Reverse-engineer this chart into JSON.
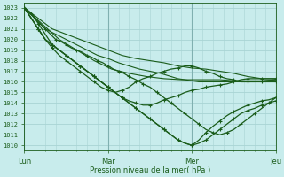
{
  "title": "",
  "xlabel": "Pression niveau de la mer( hPa )",
  "ylabel": "",
  "bg_color": "#c8ecec",
  "grid_color": "#a8d4d4",
  "line_color": "#1a5c1a",
  "ylim": [
    1010,
    1023
  ],
  "yticks": [
    1010,
    1011,
    1012,
    1013,
    1014,
    1015,
    1016,
    1017,
    1018,
    1019,
    1020,
    1021,
    1022,
    1023
  ],
  "xtick_labels": [
    "Lun",
    "Mar",
    "Mer",
    "Jeu"
  ],
  "xtick_positions": [
    0,
    48,
    96,
    144
  ],
  "total_hours": 144,
  "series": [
    {
      "dots": true,
      "pts": [
        [
          0,
          1023
        ],
        [
          4,
          1022
        ],
        [
          8,
          1021
        ],
        [
          12,
          1020
        ],
        [
          16,
          1019.2
        ],
        [
          20,
          1018.5
        ],
        [
          24,
          1018
        ],
        [
          28,
          1017.5
        ],
        [
          32,
          1017
        ],
        [
          36,
          1016.5
        ],
        [
          40,
          1016
        ],
        [
          44,
          1015.5
        ],
        [
          48,
          1015.2
        ],
        [
          52,
          1015
        ],
        [
          56,
          1015.2
        ],
        [
          60,
          1015.5
        ],
        [
          64,
          1016
        ],
        [
          68,
          1016.3
        ],
        [
          72,
          1016.5
        ],
        [
          76,
          1016.8
        ],
        [
          80,
          1017
        ],
        [
          84,
          1017.2
        ],
        [
          88,
          1017.3
        ],
        [
          92,
          1017.5
        ],
        [
          96,
          1017.5
        ],
        [
          100,
          1017.3
        ],
        [
          104,
          1017
        ],
        [
          108,
          1016.8
        ],
        [
          112,
          1016.5
        ],
        [
          116,
          1016.3
        ],
        [
          120,
          1016.2
        ],
        [
          124,
          1016
        ],
        [
          128,
          1016
        ],
        [
          132,
          1016
        ],
        [
          136,
          1016
        ],
        [
          140,
          1016
        ],
        [
          144,
          1016
        ]
      ]
    },
    {
      "dots": false,
      "pts": [
        [
          0,
          1023
        ],
        [
          6,
          1022
        ],
        [
          12,
          1021
        ],
        [
          18,
          1020.5
        ],
        [
          24,
          1020
        ],
        [
          30,
          1019.5
        ],
        [
          36,
          1019
        ],
        [
          42,
          1018.5
        ],
        [
          48,
          1018.2
        ],
        [
          54,
          1017.8
        ],
        [
          60,
          1017.5
        ],
        [
          66,
          1017.2
        ],
        [
          72,
          1017
        ],
        [
          78,
          1016.8
        ],
        [
          84,
          1016.5
        ],
        [
          88,
          1016.3
        ],
        [
          92,
          1016.2
        ],
        [
          96,
          1016.1
        ],
        [
          100,
          1016
        ],
        [
          108,
          1016
        ],
        [
          120,
          1016
        ],
        [
          132,
          1016
        ],
        [
          144,
          1016.2
        ]
      ]
    },
    {
      "dots": false,
      "pts": [
        [
          0,
          1023
        ],
        [
          8,
          1022
        ],
        [
          16,
          1021
        ],
        [
          24,
          1020.5
        ],
        [
          32,
          1020
        ],
        [
          40,
          1019.5
        ],
        [
          48,
          1019
        ],
        [
          56,
          1018.5
        ],
        [
          64,
          1018.2
        ],
        [
          72,
          1018
        ],
        [
          80,
          1017.8
        ],
        [
          88,
          1017.5
        ],
        [
          96,
          1017.3
        ],
        [
          104,
          1017.2
        ],
        [
          112,
          1017
        ],
        [
          120,
          1016.8
        ],
        [
          128,
          1016.5
        ],
        [
          136,
          1016.3
        ],
        [
          144,
          1016.3
        ]
      ]
    },
    {
      "dots": false,
      "pts": [
        [
          0,
          1023
        ],
        [
          10,
          1021.5
        ],
        [
          20,
          1020
        ],
        [
          30,
          1019
        ],
        [
          40,
          1018
        ],
        [
          50,
          1017.2
        ],
        [
          60,
          1016.8
        ],
        [
          70,
          1016.5
        ],
        [
          80,
          1016.3
        ],
        [
          90,
          1016.2
        ],
        [
          96,
          1016.2
        ],
        [
          104,
          1016.2
        ],
        [
          112,
          1016.2
        ],
        [
          120,
          1016.1
        ],
        [
          128,
          1016.1
        ],
        [
          136,
          1016.1
        ],
        [
          144,
          1016.2
        ]
      ]
    },
    {
      "dots": true,
      "pts": [
        [
          0,
          1023
        ],
        [
          4,
          1022.5
        ],
        [
          8,
          1021.5
        ],
        [
          12,
          1020.5
        ],
        [
          16,
          1019.5
        ],
        [
          20,
          1019
        ],
        [
          24,
          1018.5
        ],
        [
          28,
          1018
        ],
        [
          32,
          1017.5
        ],
        [
          36,
          1017
        ],
        [
          40,
          1016.5
        ],
        [
          44,
          1016
        ],
        [
          48,
          1015.5
        ],
        [
          52,
          1015
        ],
        [
          56,
          1014.5
        ],
        [
          60,
          1014.2
        ],
        [
          64,
          1014
        ],
        [
          68,
          1013.8
        ],
        [
          72,
          1013.8
        ],
        [
          76,
          1014
        ],
        [
          80,
          1014.3
        ],
        [
          84,
          1014.5
        ],
        [
          88,
          1014.7
        ],
        [
          92,
          1015
        ],
        [
          96,
          1015.2
        ],
        [
          100,
          1015.3
        ],
        [
          104,
          1015.5
        ],
        [
          108,
          1015.6
        ],
        [
          112,
          1015.7
        ],
        [
          116,
          1015.8
        ],
        [
          120,
          1016
        ],
        [
          124,
          1016.2
        ],
        [
          128,
          1016.3
        ],
        [
          132,
          1016.3
        ],
        [
          136,
          1016.3
        ],
        [
          140,
          1016.3
        ],
        [
          144,
          1016.3
        ]
      ]
    },
    {
      "dots": true,
      "pts": [
        [
          0,
          1023
        ],
        [
          3,
          1022.5
        ],
        [
          6,
          1022
        ],
        [
          9,
          1021.5
        ],
        [
          12,
          1021
        ],
        [
          15,
          1020.5
        ],
        [
          18,
          1020
        ],
        [
          21,
          1019.8
        ],
        [
          24,
          1019.5
        ],
        [
          27,
          1019.2
        ],
        [
          30,
          1019
        ],
        [
          33,
          1018.8
        ],
        [
          36,
          1018.5
        ],
        [
          39,
          1018.3
        ],
        [
          42,
          1018
        ],
        [
          45,
          1017.8
        ],
        [
          48,
          1017.5
        ],
        [
          51,
          1017.2
        ],
        [
          54,
          1017
        ],
        [
          57,
          1016.8
        ],
        [
          60,
          1016.5
        ],
        [
          64,
          1016.2
        ],
        [
          68,
          1015.8
        ],
        [
          72,
          1015.5
        ],
        [
          76,
          1015
        ],
        [
          80,
          1014.5
        ],
        [
          84,
          1014
        ],
        [
          88,
          1013.5
        ],
        [
          92,
          1013
        ],
        [
          96,
          1012.5
        ],
        [
          100,
          1012
        ],
        [
          104,
          1011.5
        ],
        [
          108,
          1011.2
        ],
        [
          112,
          1011
        ],
        [
          116,
          1011.2
        ],
        [
          120,
          1011.5
        ],
        [
          124,
          1012
        ],
        [
          128,
          1012.5
        ],
        [
          132,
          1013
        ],
        [
          136,
          1013.5
        ],
        [
          140,
          1014
        ],
        [
          144,
          1014.5
        ]
      ]
    },
    {
      "dots": true,
      "pts": [
        [
          0,
          1023
        ],
        [
          4,
          1022
        ],
        [
          8,
          1021
        ],
        [
          12,
          1020
        ],
        [
          16,
          1019.5
        ],
        [
          20,
          1019
        ],
        [
          24,
          1018.5
        ],
        [
          28,
          1018
        ],
        [
          32,
          1017.5
        ],
        [
          36,
          1017
        ],
        [
          40,
          1016.5
        ],
        [
          44,
          1016
        ],
        [
          48,
          1015.5
        ],
        [
          52,
          1015
        ],
        [
          56,
          1014.5
        ],
        [
          60,
          1014
        ],
        [
          64,
          1013.5
        ],
        [
          68,
          1013
        ],
        [
          72,
          1012.5
        ],
        [
          76,
          1012
        ],
        [
          80,
          1011.5
        ],
        [
          84,
          1011
        ],
        [
          88,
          1010.5
        ],
        [
          92,
          1010.2
        ],
        [
          96,
          1010
        ],
        [
          100,
          1010.2
        ],
        [
          104,
          1010.5
        ],
        [
          108,
          1011
        ],
        [
          112,
          1011.5
        ],
        [
          116,
          1012
        ],
        [
          120,
          1012.5
        ],
        [
          124,
          1013
        ],
        [
          128,
          1013.3
        ],
        [
          132,
          1013.5
        ],
        [
          136,
          1013.8
        ],
        [
          140,
          1014
        ],
        [
          144,
          1014.2
        ]
      ]
    },
    {
      "dots": true,
      "pts": [
        [
          0,
          1023
        ],
        [
          4,
          1022
        ],
        [
          8,
          1021
        ],
        [
          12,
          1020
        ],
        [
          16,
          1019.5
        ],
        [
          20,
          1019
        ],
        [
          24,
          1018.5
        ],
        [
          28,
          1018
        ],
        [
          32,
          1017.5
        ],
        [
          36,
          1017
        ],
        [
          40,
          1016.5
        ],
        [
          44,
          1016
        ],
        [
          48,
          1015.5
        ],
        [
          52,
          1015
        ],
        [
          56,
          1014.5
        ],
        [
          60,
          1014
        ],
        [
          64,
          1013.5
        ],
        [
          68,
          1013
        ],
        [
          72,
          1012.5
        ],
        [
          76,
          1012
        ],
        [
          80,
          1011.5
        ],
        [
          84,
          1011
        ],
        [
          88,
          1010.5
        ],
        [
          92,
          1010.2
        ],
        [
          96,
          1010
        ],
        [
          100,
          1010.5
        ],
        [
          104,
          1011.2
        ],
        [
          108,
          1011.8
        ],
        [
          112,
          1012.3
        ],
        [
          116,
          1012.8
        ],
        [
          120,
          1013.2
        ],
        [
          124,
          1013.5
        ],
        [
          128,
          1013.8
        ],
        [
          132,
          1014
        ],
        [
          136,
          1014.2
        ],
        [
          140,
          1014.3
        ],
        [
          144,
          1014.5
        ]
      ]
    }
  ]
}
